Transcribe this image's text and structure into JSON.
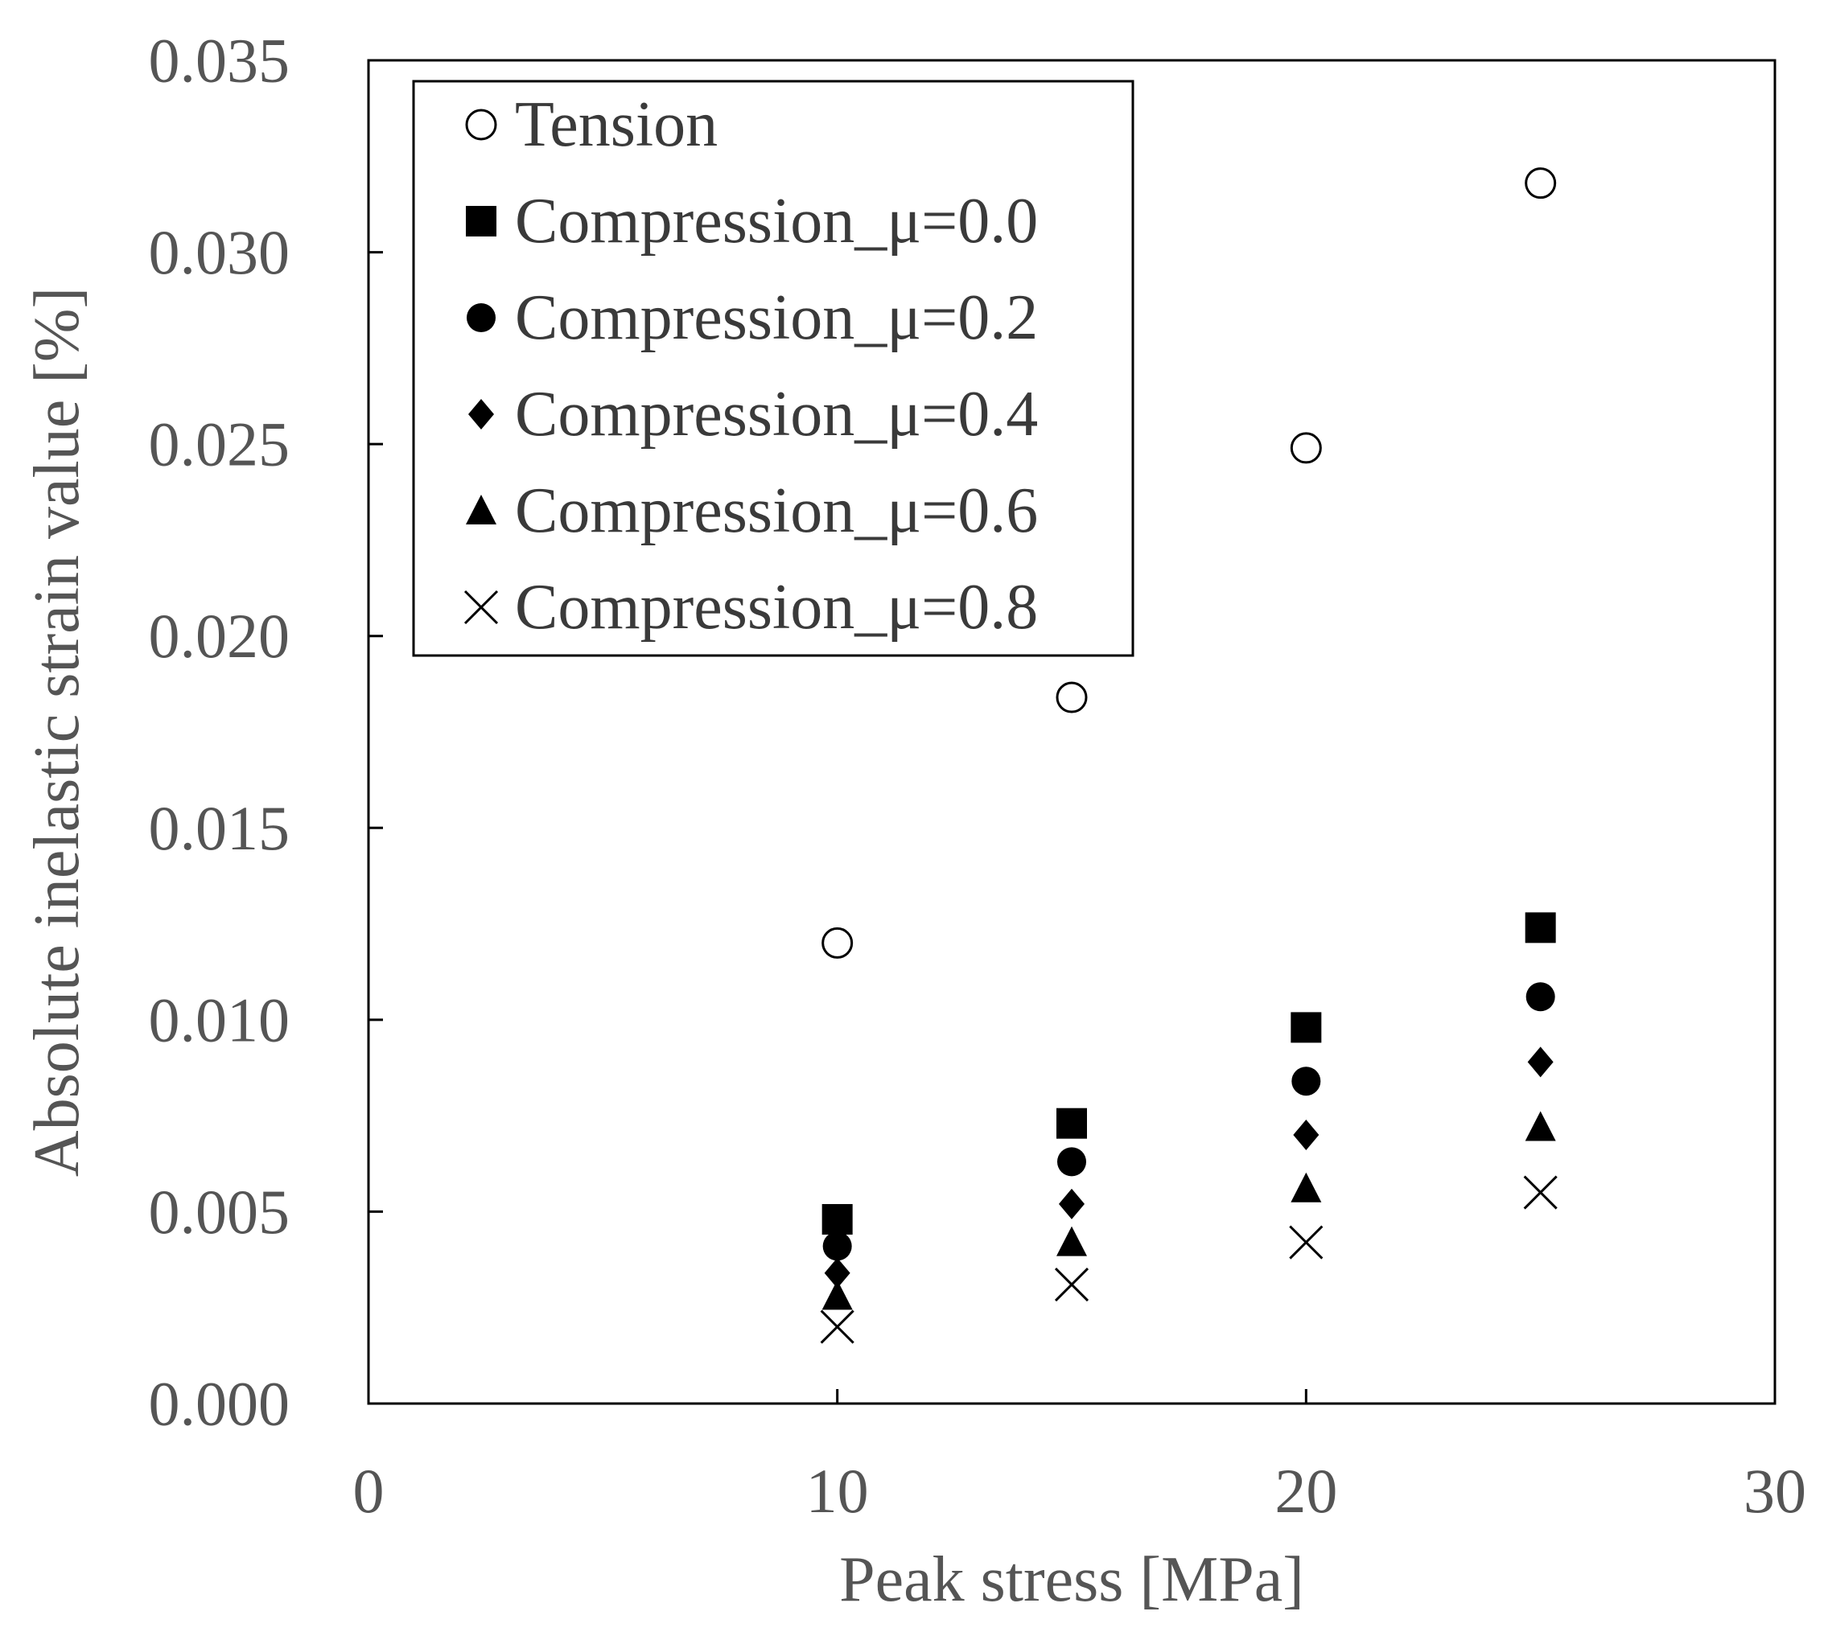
{
  "chart_data": {
    "type": "scatter",
    "title": "",
    "xlabel": "Peak stress [MPa]",
    "ylabel": "Absolute inelastic strain value [%]",
    "xlim": [
      0,
      30
    ],
    "ylim": [
      0,
      0.035
    ],
    "x_ticks": [
      "0",
      "10",
      "20",
      "30"
    ],
    "y_ticks": [
      "0.000",
      "0.005",
      "0.010",
      "0.015",
      "0.020",
      "0.025",
      "0.030",
      "0.035"
    ],
    "grid": false,
    "legend_position": "top-left",
    "series": [
      {
        "name": "Tension",
        "marker": "open-circle",
        "x": [
          10,
          15,
          20,
          25
        ],
        "y": [
          0.012,
          0.0184,
          0.0249,
          0.0318
        ]
      },
      {
        "name": "Compression_μ=0.0",
        "marker": "filled-square",
        "x": [
          10,
          15,
          20,
          25
        ],
        "y": [
          0.0048,
          0.0073,
          0.0098,
          0.0124
        ]
      },
      {
        "name": "Compression_μ=0.2",
        "marker": "filled-circle",
        "x": [
          10,
          15,
          20,
          25
        ],
        "y": [
          0.0041,
          0.0063,
          0.0084,
          0.0106
        ]
      },
      {
        "name": "Compression_μ=0.4",
        "marker": "filled-diamond",
        "x": [
          10,
          15,
          20,
          25
        ],
        "y": [
          0.0034,
          0.0052,
          0.007,
          0.0089
        ]
      },
      {
        "name": "Compression_μ=0.6",
        "marker": "filled-triangle",
        "x": [
          10,
          15,
          20,
          25
        ],
        "y": [
          0.0028,
          0.0042,
          0.0056,
          0.0072
        ]
      },
      {
        "name": "Compression_μ=0.8",
        "marker": "cross",
        "x": [
          10,
          15,
          20,
          25
        ],
        "y": [
          0.002,
          0.0031,
          0.0042,
          0.0055
        ]
      }
    ]
  }
}
